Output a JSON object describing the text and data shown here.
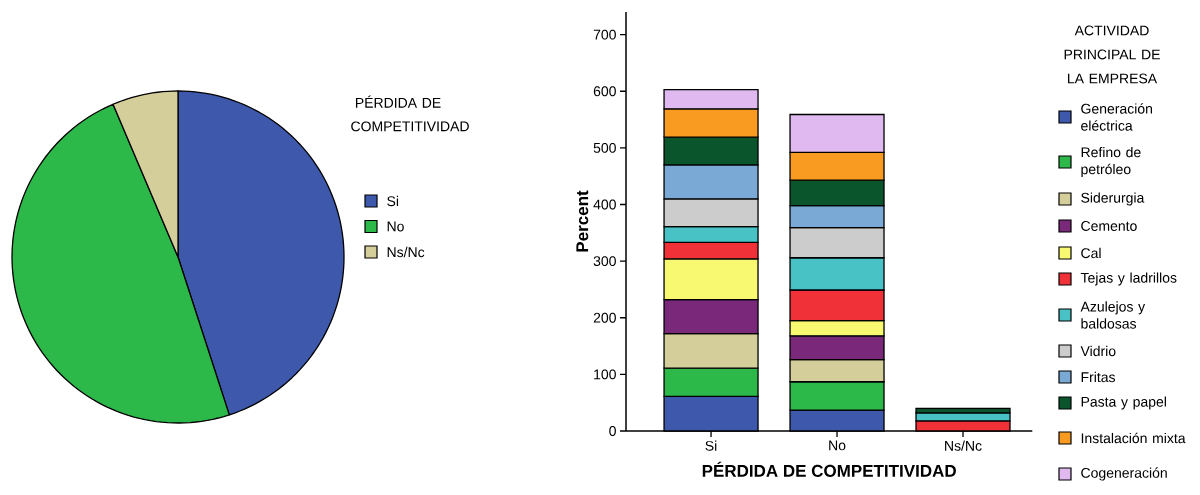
{
  "chart_data": [
    {
      "type": "pie",
      "categories": [
        "Si",
        "No",
        "Ns/Nc"
      ],
      "values": [
        45,
        48.6,
        6.4
      ],
      "colors": [
        "#3e58ac",
        "#2db84a",
        "#d4cf9a"
      ],
      "legend_title": "PÉRDIDA DE COMPETITIVIDAD",
      "legend": "right"
    },
    {
      "type": "bar",
      "stacked": true,
      "categories": [
        "Si",
        "No",
        "Ns/Nc"
      ],
      "xlabel": "PÉRDIDA DE COMPETITIVIDAD",
      "ylabel": "Percent",
      "ylim": [
        0,
        740
      ],
      "yticks": [
        0,
        100,
        200,
        300,
        400,
        500,
        600,
        700
      ],
      "legend_title": "ACTIVIDAD PRINCIPAL DE LA EMPRESA",
      "legend": "right",
      "grid": false,
      "series": [
        {
          "name": "Generación eléctrica",
          "color": "#3e58ac",
          "values": [
            61,
            37,
            0
          ]
        },
        {
          "name": "Refino de petróleo",
          "color": "#2db84a",
          "values": [
            50,
            50,
            0
          ]
        },
        {
          "name": "Siderurgia",
          "color": "#d4cf9a",
          "values": [
            61,
            39,
            0
          ]
        },
        {
          "name": "Cemento",
          "color": "#7a297a",
          "values": [
            60,
            42,
            0
          ]
        },
        {
          "name": "Cal",
          "color": "#f9f871",
          "values": [
            72,
            27,
            0
          ]
        },
        {
          "name": "Tejas y ladrillos",
          "color": "#f03238",
          "values": [
            29,
            54,
            18
          ]
        },
        {
          "name": "Azulejos y baldosas",
          "color": "#49c2c6",
          "values": [
            28,
            57,
            14
          ]
        },
        {
          "name": "Vidrio",
          "color": "#cccccc",
          "values": [
            49,
            53,
            0
          ]
        },
        {
          "name": "Fritas",
          "color": "#7aa9d6",
          "values": [
            60,
            39,
            0
          ]
        },
        {
          "name": "Pasta y papel",
          "color": "#0b552d",
          "values": [
            49,
            45,
            8
          ]
        },
        {
          "name": "Instalación mixta",
          "color": "#f89b20",
          "values": [
            50,
            49,
            0
          ]
        },
        {
          "name": "Cogeneración",
          "color": "#dfb9f0",
          "values": [
            34,
            67,
            0
          ]
        }
      ]
    }
  ]
}
